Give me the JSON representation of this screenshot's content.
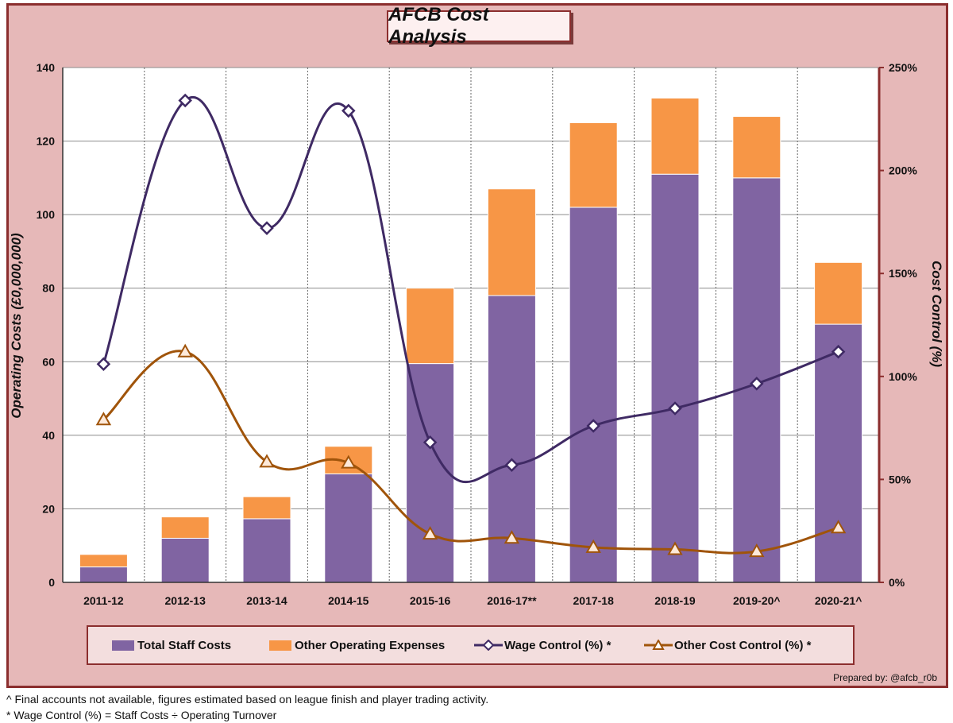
{
  "title": "AFCB Cost Analysis",
  "credit": "Prepared by: @afcb_r0b",
  "footnotes": [
    "^ Final  accounts not available, figures estimated based on league finish and player trading activity.",
    "* Wage Control (%) = Staff Costs ÷ Operating Turnover"
  ],
  "colors": {
    "staff": "#8064a2",
    "other": "#f79646",
    "wage_line": "#3f2a64",
    "other_line": "#a0540a",
    "axis": "#8b2e2e"
  },
  "chart_data": {
    "type": "bar",
    "stacked": true,
    "title": "AFCB Cost Analysis",
    "categories": [
      "2011-12",
      "2012-13",
      "2013-14",
      "2014-15",
      "2015-16",
      "2016-17**",
      "2017-18",
      "2018-19",
      "2019-20^",
      "2020-21^"
    ],
    "ylabel": "Operating Costs (£0,000,000)",
    "ylim": [
      0,
      140
    ],
    "yticks": [
      "0",
      "20",
      "40",
      "60",
      "80",
      "100",
      "120",
      "140"
    ],
    "y2label": "Cost Control (%)",
    "y2lim": [
      0,
      250
    ],
    "y2ticks": [
      "0%",
      "50%",
      "100%",
      "150%",
      "200%",
      "250%"
    ],
    "legend_position": "bottom",
    "series": [
      {
        "name": "Total Staff Costs",
        "kind": "bar",
        "axis": "left",
        "values": [
          4.2,
          12,
          17.3,
          29.5,
          59.5,
          78,
          102,
          111,
          110,
          70.2
        ]
      },
      {
        "name": "Other Operating Expenses",
        "kind": "bar",
        "axis": "left",
        "values": [
          3.4,
          5.8,
          6,
          7.5,
          20.5,
          29,
          23,
          20.7,
          16.7,
          16.8
        ]
      },
      {
        "name": "Wage Control (%) *",
        "kind": "line",
        "axis": "right",
        "marker": "diamond",
        "values": [
          106,
          234,
          172,
          229,
          68,
          57,
          76,
          84.5,
          96.5,
          112
        ]
      },
      {
        "name": "Other Cost Control (%) *",
        "kind": "line",
        "axis": "right",
        "marker": "triangle",
        "values": [
          79,
          112,
          58.5,
          58,
          23.5,
          21.5,
          17,
          16,
          15,
          26.5
        ]
      }
    ]
  }
}
